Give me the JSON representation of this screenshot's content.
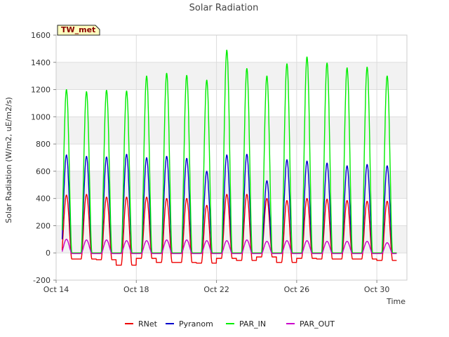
{
  "chart_data": {
    "type": "line",
    "title": "Solar Radiation",
    "xlabel": "Time",
    "ylabel": "Solar Radiation (W/m2, uE/m2/s)",
    "station_label": "TW_met",
    "xlim": [
      14,
      31.5
    ],
    "ylim": [
      -200,
      1600
    ],
    "yticks": [
      -200,
      0,
      200,
      400,
      600,
      800,
      1000,
      1200,
      1400,
      1600
    ],
    "xticks": [
      {
        "value": 14,
        "label": "Oct 14"
      },
      {
        "value": 18,
        "label": "Oct 18"
      },
      {
        "value": 22,
        "label": "Oct 22"
      },
      {
        "value": 26,
        "label": "Oct 26"
      },
      {
        "value": 30,
        "label": "Oct 30"
      }
    ],
    "grid": true,
    "legend_position": "bottom",
    "x_start": 14.3,
    "x_end": 31.3,
    "days": [
      14,
      15,
      16,
      17,
      18,
      19,
      20,
      21,
      22,
      23,
      24,
      25,
      26,
      27,
      28,
      29,
      30
    ],
    "series": [
      {
        "name": "RNet",
        "color": "#ee0000",
        "peaks": [
          425,
          430,
          410,
          410,
          410,
          400,
          400,
          350,
          430,
          430,
          400,
          385,
          400,
          395,
          385,
          380,
          380
        ],
        "nights": [
          -45,
          -45,
          -50,
          -90,
          -40,
          -70,
          -70,
          -75,
          -40,
          -55,
          -30,
          -70,
          -40,
          -45,
          -45,
          -45,
          -55
        ]
      },
      {
        "name": "Pyranom",
        "color": "#0000cc",
        "peaks": [
          720,
          710,
          705,
          725,
          700,
          710,
          695,
          600,
          720,
          725,
          530,
          685,
          675,
          660,
          640,
          650,
          640
        ],
        "nights": [
          0,
          0,
          0,
          0,
          0,
          0,
          0,
          0,
          0,
          0,
          0,
          0,
          0,
          0,
          0,
          0,
          0
        ]
      },
      {
        "name": "PAR_IN",
        "color": "#00ee00",
        "peaks": [
          1200,
          1185,
          1195,
          1190,
          1300,
          1320,
          1305,
          1270,
          1490,
          1355,
          1300,
          1390,
          1440,
          1395,
          1360,
          1365,
          1300
        ],
        "nights": [
          0,
          0,
          0,
          0,
          0,
          0,
          0,
          0,
          0,
          0,
          0,
          0,
          0,
          0,
          0,
          0,
          0
        ]
      },
      {
        "name": "PAR_OUT",
        "color": "#cc00cc",
        "peaks": [
          100,
          95,
          95,
          90,
          90,
          95,
          95,
          90,
          90,
          95,
          85,
          90,
          90,
          85,
          85,
          85,
          75
        ],
        "nights": [
          -5,
          -5,
          -5,
          -5,
          -5,
          -5,
          -5,
          -5,
          -5,
          -5,
          -5,
          -5,
          -5,
          -5,
          -5,
          -5,
          -5
        ]
      }
    ]
  }
}
